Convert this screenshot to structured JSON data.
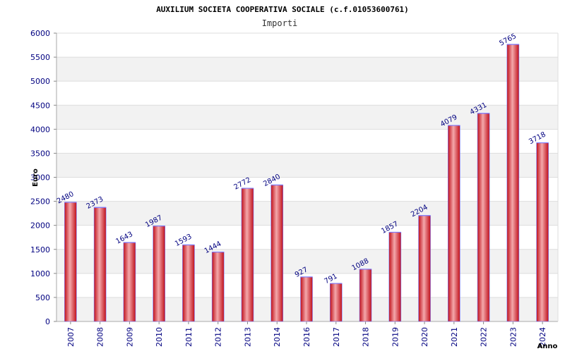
{
  "chart_data": {
    "type": "bar",
    "title": "AUXILIUM SOCIETA COOPERATIVA SOCIALE (c.f.01053600761)",
    "subtitle": "Importi",
    "xlabel": "Anno",
    "ylabel": "Euro",
    "categories": [
      "2007",
      "2008",
      "2009",
      "2010",
      "2011",
      "2012",
      "2013",
      "2014",
      "2016",
      "2017",
      "2018",
      "2019",
      "2020",
      "2021",
      "2022",
      "2023",
      "2024"
    ],
    "values": [
      2480,
      2373,
      1643,
      1987,
      1593,
      1444,
      2772,
      2840,
      927,
      791,
      1088,
      1857,
      2204,
      4079,
      4331,
      5765,
      3718
    ],
    "data_labels": [
      "2480",
      "2373",
      "1643",
      "1987",
      "1593",
      "1444",
      "2772",
      "2840",
      "927",
      "791",
      "1088",
      "1857",
      "2204",
      "4079",
      "4331",
      "5765",
      "3718"
    ],
    "ylim": [
      0,
      6000
    ],
    "yticks": [
      "0",
      "500",
      "1000",
      "1500",
      "2000",
      "2500",
      "3000",
      "3500",
      "4000",
      "4500",
      "5000",
      "5500",
      "6000"
    ],
    "grid": true,
    "colors": {
      "bar_edge": "#c0101a",
      "bar_mid": "#f4a8ab",
      "bar_outline": "#7a7aff",
      "band": "#f2f2f2",
      "gridline": "#dddddd",
      "text": "#000080"
    }
  }
}
